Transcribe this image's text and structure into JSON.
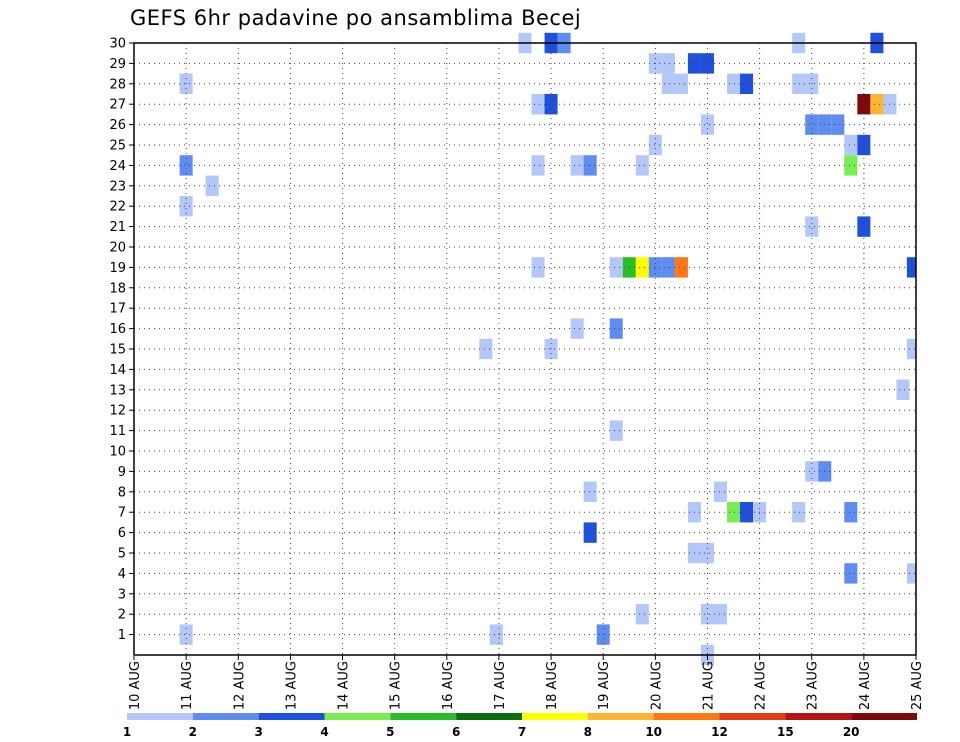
{
  "chart_data": {
    "type": "heatmap",
    "title": "GEFS 6hr padavine po ansamblima Becej",
    "x_axis": {
      "unit": "days",
      "start_label_index": 0,
      "tick_labels": [
        "10 AUG",
        "11 AUG",
        "12 AUG",
        "13 AUG",
        "14 AUG",
        "15 AUG",
        "16 AUG",
        "17 AUG",
        "18 AUG",
        "19 AUG",
        "20 AUG",
        "21 AUG",
        "22 AUG",
        "23 AUG",
        "24 AUG",
        "25 AUG"
      ],
      "range": [
        0,
        15
      ],
      "step": 0.25
    },
    "y_axis": {
      "tick_labels": [
        "1",
        "2",
        "3",
        "4",
        "5",
        "6",
        "7",
        "8",
        "9",
        "10",
        "11",
        "12",
        "13",
        "14",
        "15",
        "16",
        "17",
        "18",
        "19",
        "20",
        "21",
        "22",
        "23",
        "24",
        "25",
        "26",
        "27",
        "28",
        "29",
        "30"
      ],
      "range": [
        0,
        30
      ]
    },
    "grid": true,
    "legend": {
      "position": "bottom",
      "colors": [
        "#b4c7fa",
        "#5f8cf0",
        "#1e50dc",
        "#78ee50",
        "#28be28",
        "#0a6e0a",
        "#ffff00",
        "#ffb432",
        "#ff7814",
        "#e13c14",
        "#b41414",
        "#7d0a0a"
      ],
      "labels": [
        "1",
        "2",
        "3",
        "4",
        "5",
        "6",
        "7",
        "8",
        "10",
        "12",
        "15",
        "20"
      ]
    },
    "level_colors": {
      "1": "#b4c7fa",
      "2": "#5f8cf0",
      "3": "#1e50dc",
      "4": "#78ee50",
      "5": "#28be28",
      "6": "#0a6e0a",
      "7": "#ffff00",
      "8": "#ffb432",
      "9": "#ff7814",
      "10": "#e13c14",
      "11": "#b41414",
      "12": "#7d0a0a"
    },
    "cells": [
      [
        7.5,
        30,
        1
      ],
      [
        8.0,
        30,
        3
      ],
      [
        8.25,
        30,
        2
      ],
      [
        12.75,
        30,
        1
      ],
      [
        14.25,
        30,
        3
      ],
      [
        10.0,
        29,
        1
      ],
      [
        10.25,
        29,
        1
      ],
      [
        10.75,
        29,
        3
      ],
      [
        11.0,
        29,
        3
      ],
      [
        1.0,
        28,
        1
      ],
      [
        10.25,
        28,
        1
      ],
      [
        10.5,
        28,
        1
      ],
      [
        11.5,
        28,
        1
      ],
      [
        11.75,
        28,
        3
      ],
      [
        12.75,
        28,
        1
      ],
      [
        13.0,
        28,
        1
      ],
      [
        7.75,
        27,
        1
      ],
      [
        8.0,
        27,
        3
      ],
      [
        14.0,
        27,
        12
      ],
      [
        14.25,
        27,
        8
      ],
      [
        14.5,
        27,
        1
      ],
      [
        11.0,
        26,
        1
      ],
      [
        13.0,
        26,
        2
      ],
      [
        13.25,
        26,
        2
      ],
      [
        13.5,
        26,
        2
      ],
      [
        10.0,
        25,
        1
      ],
      [
        13.75,
        25,
        1
      ],
      [
        14.0,
        25,
        3
      ],
      [
        1.0,
        24,
        2
      ],
      [
        7.75,
        24,
        1
      ],
      [
        8.5,
        24,
        1
      ],
      [
        8.75,
        24,
        2
      ],
      [
        9.75,
        24,
        1
      ],
      [
        13.75,
        24,
        4
      ],
      [
        1.5,
        23,
        1
      ],
      [
        1.0,
        22,
        1
      ],
      [
        13.0,
        21,
        1
      ],
      [
        14.0,
        21,
        3
      ],
      [
        7.75,
        19,
        1
      ],
      [
        9.25,
        19,
        1
      ],
      [
        9.5,
        19,
        5
      ],
      [
        9.75,
        19,
        7
      ],
      [
        10.0,
        19,
        2
      ],
      [
        10.25,
        19,
        2
      ],
      [
        10.5,
        19,
        9
      ],
      [
        14.95,
        19,
        3
      ],
      [
        8.5,
        16,
        1
      ],
      [
        9.25,
        16,
        2
      ],
      [
        6.75,
        15,
        1
      ],
      [
        8.0,
        15,
        1
      ],
      [
        14.95,
        15,
        1
      ],
      [
        14.75,
        13,
        1
      ],
      [
        9.25,
        11,
        1
      ],
      [
        13.0,
        9,
        1
      ],
      [
        13.25,
        9,
        2
      ],
      [
        8.75,
        8,
        1
      ],
      [
        11.25,
        8,
        1
      ],
      [
        10.75,
        7,
        1
      ],
      [
        11.5,
        7,
        4
      ],
      [
        11.75,
        7,
        3
      ],
      [
        12.0,
        7,
        1
      ],
      [
        12.75,
        7,
        1
      ],
      [
        13.75,
        7,
        2
      ],
      [
        8.75,
        6,
        3
      ],
      [
        10.75,
        5,
        1
      ],
      [
        11.0,
        5,
        1
      ],
      [
        13.75,
        4,
        2
      ],
      [
        14.95,
        4,
        1
      ],
      [
        9.75,
        2,
        1
      ],
      [
        11.0,
        2,
        1
      ],
      [
        11.25,
        2,
        1
      ],
      [
        1.0,
        1,
        1
      ],
      [
        6.95,
        1,
        1
      ],
      [
        9.0,
        1,
        2
      ],
      [
        11.0,
        0,
        1
      ]
    ]
  }
}
